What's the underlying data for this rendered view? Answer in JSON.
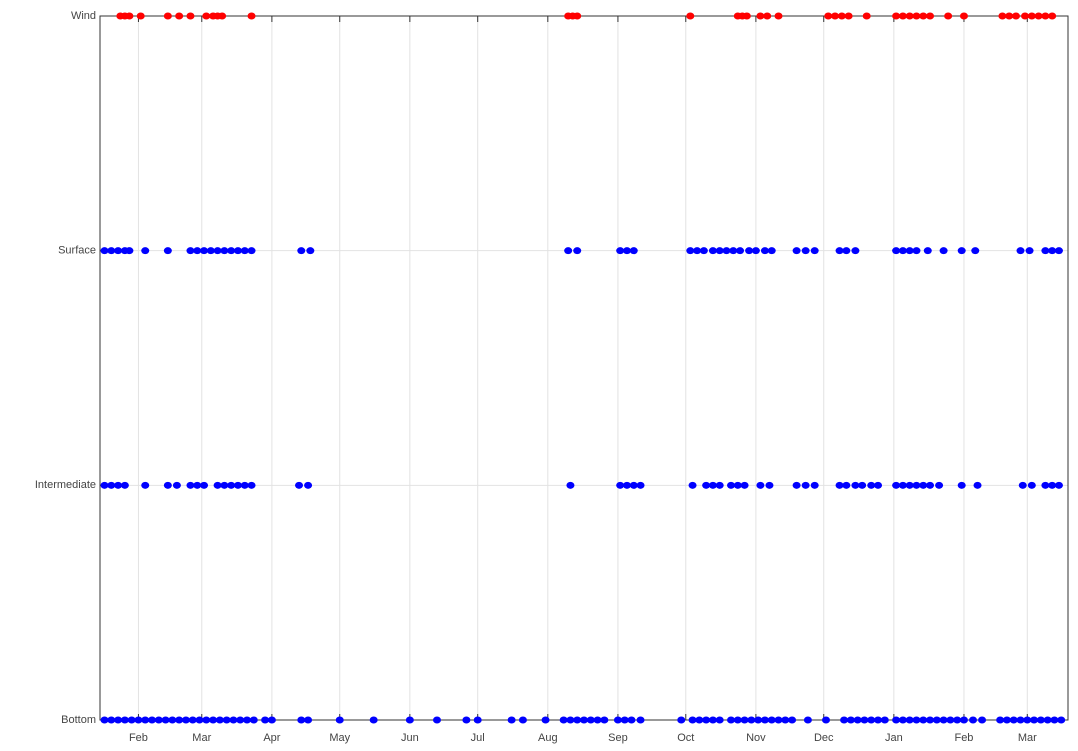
{
  "chart_data": {
    "type": "scatter",
    "xlim": [
      -17,
      411
    ],
    "xticks": [
      {
        "value": 0,
        "label": "Feb"
      },
      {
        "value": 28,
        "label": "Mar"
      },
      {
        "value": 59,
        "label": "Apr"
      },
      {
        "value": 89,
        "label": "May"
      },
      {
        "value": 120,
        "label": "Jun"
      },
      {
        "value": 150,
        "label": "Jul"
      },
      {
        "value": 181,
        "label": "Aug"
      },
      {
        "value": 212,
        "label": "Sep"
      },
      {
        "value": 242,
        "label": "Oct"
      },
      {
        "value": 273,
        "label": "Nov"
      },
      {
        "value": 303,
        "label": "Dec"
      },
      {
        "value": 334,
        "label": "Jan"
      },
      {
        "value": 365,
        "label": "Feb"
      },
      {
        "value": 393,
        "label": "Mar"
      }
    ],
    "ylim": [
      0,
      3
    ],
    "yticks": [
      {
        "value": 0,
        "label": "Bottom"
      },
      {
        "value": 1,
        "label": "Intermediate"
      },
      {
        "value": 2,
        "label": "Surface"
      },
      {
        "value": 3,
        "label": "Wind"
      }
    ],
    "grid": true,
    "series": [
      {
        "color": "#ff0000",
        "y": 3,
        "x": [
          -8,
          -6,
          -4,
          1,
          13,
          18,
          23,
          30,
          33,
          35,
          37,
          50,
          190,
          192,
          194,
          244,
          265,
          267,
          269,
          275,
          278,
          283,
          305,
          308,
          311,
          314,
          322,
          335,
          338,
          341,
          344,
          347,
          350,
          358,
          365,
          382,
          385,
          388,
          392,
          395,
          398,
          401,
          404
        ]
      },
      {
        "color": "#0000ff",
        "y": 2,
        "x": [
          -15,
          -12,
          -9,
          -6,
          -4,
          3,
          13,
          23,
          26,
          29,
          32,
          35,
          38,
          41,
          44,
          47,
          50,
          72,
          76,
          190,
          194,
          213,
          216,
          219,
          244,
          247,
          250,
          254,
          257,
          260,
          263,
          266,
          270,
          273,
          277,
          280,
          291,
          295,
          299,
          310,
          313,
          317,
          335,
          338,
          341,
          344,
          349,
          356,
          364,
          370,
          390,
          394,
          401,
          404,
          407
        ]
      },
      {
        "color": "#0000ff",
        "y": 1,
        "x": [
          -15,
          -12,
          -9,
          -6,
          3,
          13,
          17,
          23,
          26,
          29,
          35,
          38,
          41,
          44,
          47,
          50,
          71,
          75,
          191,
          213,
          216,
          219,
          222,
          245,
          251,
          254,
          257,
          262,
          265,
          268,
          275,
          279,
          291,
          295,
          299,
          310,
          313,
          317,
          320,
          324,
          327,
          335,
          338,
          341,
          344,
          347,
          350,
          354,
          364,
          371,
          391,
          395,
          401,
          404,
          407
        ]
      },
      {
        "color": "#0000ff",
        "y": 0,
        "x": [
          -15,
          -12,
          -9,
          -6,
          -3,
          0,
          3,
          6,
          9,
          12,
          15,
          18,
          21,
          24,
          27,
          30,
          33,
          36,
          39,
          42,
          45,
          48,
          51,
          56,
          59,
          72,
          75,
          89,
          104,
          120,
          132,
          145,
          150,
          165,
          170,
          180,
          188,
          191,
          194,
          197,
          200,
          203,
          206,
          212,
          215,
          218,
          222,
          240,
          245,
          248,
          251,
          254,
          257,
          262,
          265,
          268,
          271,
          274,
          277,
          280,
          283,
          286,
          289,
          296,
          304,
          312,
          315,
          318,
          321,
          324,
          327,
          330,
          335,
          338,
          341,
          344,
          347,
          350,
          353,
          356,
          359,
          362,
          365,
          369,
          373,
          381,
          384,
          387,
          390,
          393,
          396,
          399,
          402,
          405,
          408
        ]
      }
    ]
  }
}
